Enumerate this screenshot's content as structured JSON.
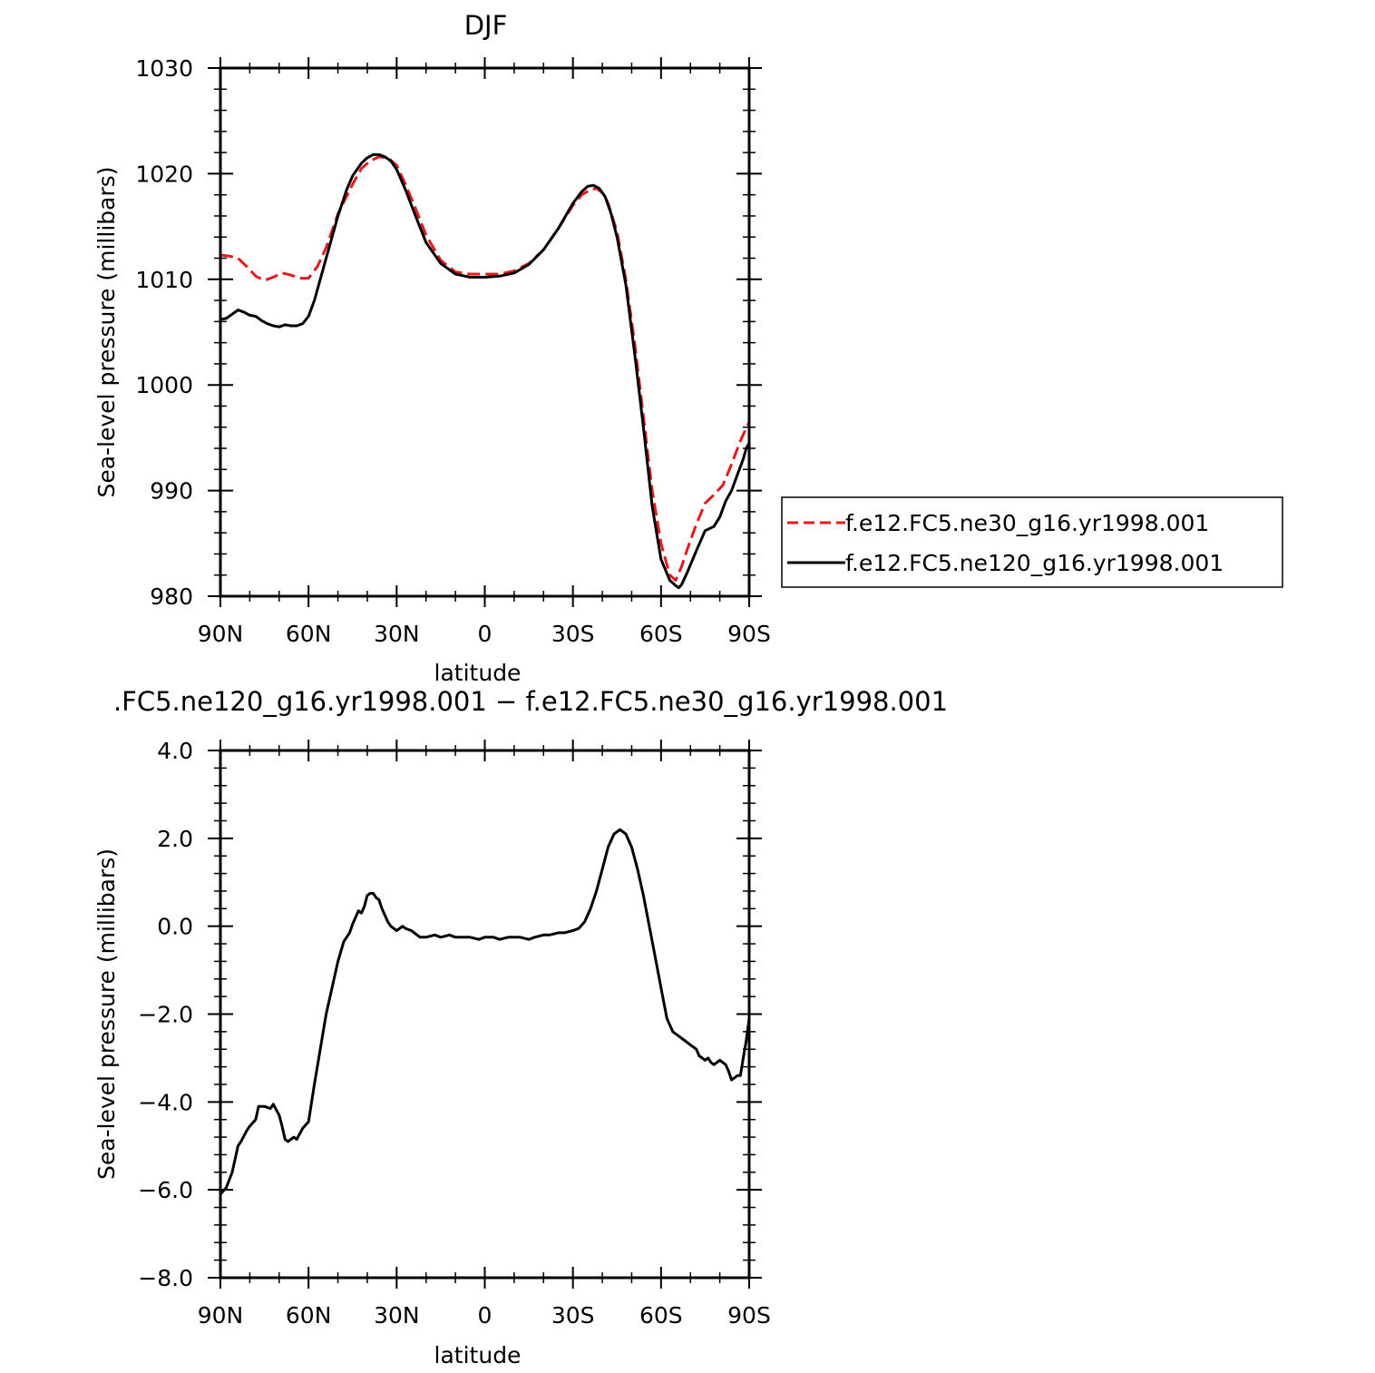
{
  "chart_data": [
    {
      "type": "line",
      "title": "DJF",
      "xlabel": "latitude",
      "ylabel": "Sea-level pressure (millibars)",
      "xlim": [
        90,
        -90
      ],
      "ylim": [
        980,
        1030
      ],
      "x_ticks": [
        {
          "value": 90,
          "label": "90N"
        },
        {
          "value": 60,
          "label": "60N"
        },
        {
          "value": 30,
          "label": "30N"
        },
        {
          "value": 0,
          "label": "0"
        },
        {
          "value": -30,
          "label": "30S"
        },
        {
          "value": -60,
          "label": "60S"
        },
        {
          "value": -90,
          "label": "90S"
        }
      ],
      "y_ticks": [
        {
          "value": 980,
          "label": "980"
        },
        {
          "value": 990,
          "label": "990"
        },
        {
          "value": 1000,
          "label": "1000"
        },
        {
          "value": 1010,
          "label": "1010"
        },
        {
          "value": 1020,
          "label": "1020"
        },
        {
          "value": 1030,
          "label": "1030"
        }
      ],
      "legend_position": "right",
      "series": [
        {
          "name": "f.e12.FC5.ne30_g16.yr1998.001",
          "color": "#e41a1c",
          "dash": "dashed",
          "x": [
            90,
            87,
            84,
            81,
            78,
            75,
            72,
            69,
            66,
            63,
            60,
            57,
            54,
            50,
            45,
            42,
            39,
            36,
            33,
            30,
            27,
            24,
            20,
            15,
            10,
            5,
            0,
            -5,
            -10,
            -15,
            -20,
            -25,
            -30,
            -33,
            -36,
            -38,
            -40,
            -42,
            -45,
            -48,
            -51,
            -54,
            -57,
            -60,
            -63,
            -65,
            -67,
            -69,
            -72,
            -75,
            -78,
            -81,
            -84,
            -87,
            -90
          ],
          "y": [
            1012.3,
            1012.2,
            1012.0,
            1011.2,
            1010.3,
            1009.9,
            1010.2,
            1010.6,
            1010.4,
            1010.1,
            1010.1,
            1011.2,
            1013.0,
            1016.2,
            1019.0,
            1020.5,
            1021.2,
            1021.6,
            1021.5,
            1020.8,
            1019.0,
            1017.0,
            1014.2,
            1011.8,
            1010.7,
            1010.5,
            1010.5,
            1010.5,
            1010.8,
            1011.5,
            1012.8,
            1014.8,
            1017.0,
            1018.0,
            1018.5,
            1018.6,
            1018.2,
            1017.2,
            1014.5,
            1010.0,
            1004.0,
            997.0,
            990.0,
            985.0,
            982.0,
            981.5,
            982.8,
            984.5,
            986.8,
            988.8,
            989.6,
            990.5,
            992.5,
            994.7,
            996.5
          ]
        },
        {
          "name": "f.e12.FC5.ne120_g16.yr1998.001",
          "color": "#000000",
          "dash": "solid",
          "x": [
            90,
            88,
            86,
            84,
            82,
            80,
            78,
            76,
            74,
            72,
            70,
            68,
            66,
            64,
            62,
            60,
            58,
            56,
            54,
            50,
            47,
            45,
            42,
            40,
            38,
            36,
            34,
            32,
            30,
            27,
            24,
            20,
            15,
            10,
            5,
            0,
            -5,
            -10,
            -15,
            -20,
            -25,
            -30,
            -33,
            -35,
            -37,
            -39,
            -41,
            -43,
            -45,
            -48,
            -51,
            -54,
            -57,
            -60,
            -63,
            -65,
            -66,
            -67,
            -69,
            -72,
            -75,
            -78,
            -80,
            -82,
            -84,
            -86,
            -88,
            -89,
            -90
          ],
          "y": [
            1006.2,
            1006.3,
            1006.7,
            1007.1,
            1006.9,
            1006.6,
            1006.5,
            1006.1,
            1005.8,
            1005.6,
            1005.5,
            1005.7,
            1005.6,
            1005.6,
            1005.8,
            1006.5,
            1008.0,
            1010.0,
            1012.0,
            1016.0,
            1018.5,
            1019.8,
            1021.0,
            1021.5,
            1021.8,
            1021.8,
            1021.6,
            1021.2,
            1020.4,
            1018.5,
            1016.3,
            1013.5,
            1011.5,
            1010.5,
            1010.2,
            1010.2,
            1010.3,
            1010.6,
            1011.4,
            1012.8,
            1014.8,
            1017.2,
            1018.3,
            1018.8,
            1018.9,
            1018.6,
            1017.8,
            1016.2,
            1014.0,
            1009.5,
            1003.0,
            996.0,
            988.5,
            983.5,
            981.5,
            981.0,
            980.8,
            981.1,
            982.3,
            984.3,
            986.2,
            986.6,
            987.5,
            989.0,
            990.0,
            991.5,
            993.0,
            994.0,
            994.5
          ]
        }
      ]
    },
    {
      "type": "line",
      "title": ".FC5.ne120_g16.yr1998.001 − f.e12.FC5.ne30_g16.yr1998.001",
      "xlabel": "latitude",
      "ylabel": "Sea-level pressure (millibars)",
      "xlim": [
        90,
        -90
      ],
      "ylim": [
        -8.0,
        4.0
      ],
      "x_ticks": [
        {
          "value": 90,
          "label": "90N"
        },
        {
          "value": 60,
          "label": "60N"
        },
        {
          "value": 30,
          "label": "30N"
        },
        {
          "value": 0,
          "label": "0"
        },
        {
          "value": -30,
          "label": "30S"
        },
        {
          "value": -60,
          "label": "60S"
        },
        {
          "value": -90,
          "label": "90S"
        }
      ],
      "y_ticks": [
        {
          "value": -8.0,
          "label": "−8.0"
        },
        {
          "value": -6.0,
          "label": "−6.0"
        },
        {
          "value": -4.0,
          "label": "−4.0"
        },
        {
          "value": -2.0,
          "label": "−2.0"
        },
        {
          "value": 0.0,
          "label": "0.0"
        },
        {
          "value": 2.0,
          "label": "2.0"
        },
        {
          "value": 4.0,
          "label": "4.0"
        }
      ],
      "series": [
        {
          "color": "#000000",
          "dash": "solid",
          "x": [
            90,
            88,
            86,
            84,
            83,
            81,
            80,
            78,
            77,
            75,
            73,
            72,
            70,
            69,
            68,
            67,
            66,
            65,
            64,
            62,
            60,
            58,
            56,
            54,
            52,
            50,
            48,
            46,
            45,
            44,
            43,
            42,
            41,
            40,
            39,
            38,
            37,
            36,
            35,
            34,
            33,
            32,
            31,
            30,
            29,
            28,
            27,
            25,
            22,
            20,
            17,
            15,
            12,
            10,
            7,
            5,
            2,
            0,
            -3,
            -5,
            -8,
            -10,
            -12,
            -15,
            -17,
            -20,
            -22,
            -25,
            -27,
            -30,
            -32,
            -34,
            -36,
            -38,
            -40,
            -42,
            -44,
            -46,
            -48,
            -50,
            -52,
            -54,
            -56,
            -58,
            -60,
            -62,
            -64,
            -66,
            -68,
            -69,
            -70,
            -71,
            -72,
            -73,
            -74,
            -75,
            -76,
            -77,
            -78,
            -79,
            -80,
            -81,
            -82,
            -83,
            -84,
            -85,
            -86,
            -87,
            -88,
            -89,
            -90
          ],
          "y": [
            -6.1,
            -5.95,
            -5.6,
            -5.0,
            -4.9,
            -4.65,
            -4.55,
            -4.4,
            -4.1,
            -4.1,
            -4.15,
            -4.05,
            -4.3,
            -4.55,
            -4.85,
            -4.9,
            -4.85,
            -4.8,
            -4.85,
            -4.6,
            -4.45,
            -3.6,
            -2.8,
            -2.0,
            -1.4,
            -0.8,
            -0.35,
            -0.15,
            0.05,
            0.2,
            0.35,
            0.3,
            0.45,
            0.7,
            0.75,
            0.75,
            0.65,
            0.6,
            0.4,
            0.25,
            0.1,
            0.0,
            -0.05,
            -0.1,
            -0.05,
            0.0,
            -0.05,
            -0.1,
            -0.25,
            -0.25,
            -0.2,
            -0.25,
            -0.2,
            -0.25,
            -0.25,
            -0.25,
            -0.3,
            -0.25,
            -0.25,
            -0.3,
            -0.25,
            -0.25,
            -0.25,
            -0.3,
            -0.25,
            -0.2,
            -0.2,
            -0.15,
            -0.15,
            -0.1,
            -0.05,
            0.1,
            0.4,
            0.8,
            1.3,
            1.8,
            2.1,
            2.2,
            2.1,
            1.8,
            1.3,
            0.7,
            0.0,
            -0.7,
            -1.4,
            -2.1,
            -2.4,
            -2.5,
            -2.6,
            -2.65,
            -2.7,
            -2.75,
            -2.8,
            -2.95,
            -3.0,
            -3.05,
            -3.0,
            -3.1,
            -3.15,
            -3.1,
            -3.05,
            -3.1,
            -3.15,
            -3.3,
            -3.5,
            -3.45,
            -3.4,
            -3.4,
            -3.0,
            -2.6,
            -2.1
          ]
        }
      ]
    }
  ]
}
